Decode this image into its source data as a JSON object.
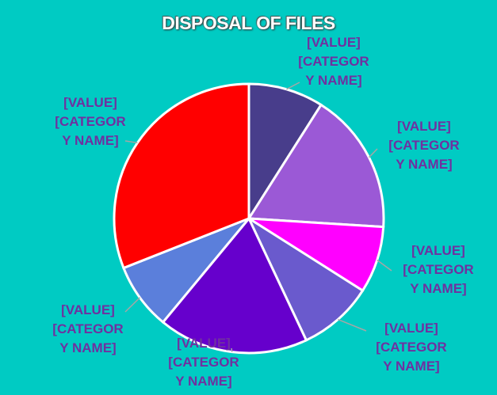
{
  "chart_data": {
    "type": "pie",
    "title": "DISPOSAL OF FILES",
    "categories": [
      "[CATEGORY NAME]",
      "[CATEGORY NAME]",
      "[CATEGORY NAME]",
      "[CATEGORY NAME]",
      "[CATEGORY NAME]",
      "[CATEGORY NAME]",
      "[CATEGORY NAME]"
    ],
    "values": [
      9,
      17,
      8,
      9,
      18,
      8,
      31
    ],
    "value_labels": [
      "[VALUE]",
      "[VALUE]",
      "[VALUE]",
      "[VALUE]",
      "[VALUE]",
      "[VALUE]",
      "[VALUE]"
    ],
    "colors": [
      "#483D8B",
      "#9B59D6",
      "#FF00FF",
      "#6A5ACD",
      "#6600CC",
      "#5B7FDB",
      "#FF0000"
    ]
  }
}
